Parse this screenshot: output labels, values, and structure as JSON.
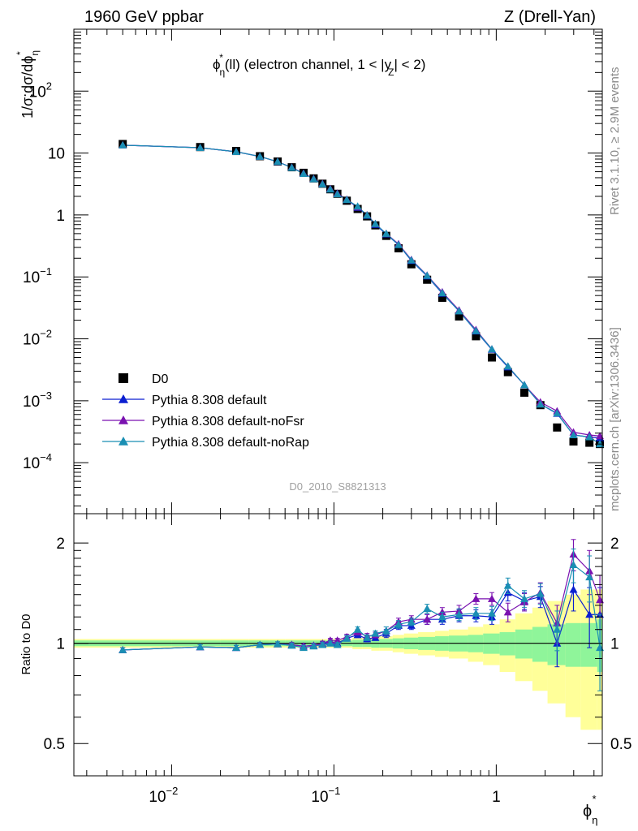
{
  "header": {
    "left": "1960 GeV ppbar",
    "right": "Z (Drell-Yan)",
    "side_rivet": "Rivet 3.1.10, ≥ 2.9M events",
    "side_mcplots": "mcplots.cern.ch [arXiv:1306.3436]",
    "analysis": "D0_2010_S8821313"
  },
  "chart_data": [
    {
      "type": "scatter",
      "title": "ϕη*(ll) (electron channel, 1 < |yZ| < 2)",
      "title_parts": {
        "phi": "ϕ",
        "sub": "η",
        "sup": "*",
        "mid": "(ll) (electron channel, 1 < |y",
        "ysub": "Z",
        "end": "| < 2)"
      },
      "ylabel": "1/σ;dσ/dϕη*",
      "ylabel_parts": {
        "main": "1/σ;dσ/dϕ",
        "sub": "η",
        "sup": "*"
      },
      "xscale": "log",
      "yscale": "log",
      "xlim": [
        0.0025,
        4.5
      ],
      "ylim": [
        1.5e-05,
        1000
      ],
      "legend_position": "lower-left",
      "x": [
        0.005,
        0.015,
        0.025,
        0.035,
        0.045,
        0.055,
        0.065,
        0.075,
        0.085,
        0.095,
        0.105,
        0.12,
        0.14,
        0.16,
        0.18,
        0.21,
        0.25,
        0.3,
        0.375,
        0.465,
        0.59,
        0.75,
        0.94,
        1.18,
        1.49,
        1.87,
        2.37,
        2.99,
        3.75,
        4.35
      ],
      "series": [
        {
          "name": "D0",
          "color": "#000000",
          "marker": "square",
          "values": [
            14.0,
            12.5,
            10.8,
            8.9,
            7.3,
            5.9,
            4.8,
            3.9,
            3.2,
            2.6,
            2.2,
            1.7,
            1.25,
            0.95,
            0.68,
            0.46,
            0.29,
            0.16,
            0.09,
            0.046,
            0.023,
            0.011,
            0.005,
            0.0029,
            0.00135,
            0.00085,
            0.00037,
            0.00022,
            0.00021,
            0.0002
          ]
        },
        {
          "name": "Pythia 8.308 default",
          "color": "#0b1fd0",
          "marker": "triangle",
          "values": [
            13.4,
            12.2,
            10.5,
            8.8,
            7.25,
            5.85,
            4.7,
            3.85,
            3.18,
            2.62,
            2.2,
            1.76,
            1.32,
            0.98,
            0.7,
            0.49,
            0.33,
            0.183,
            0.103,
            0.054,
            0.028,
            0.0133,
            0.0067,
            0.0035,
            0.0018,
            0.00088,
            0.00062,
            0.00028,
            0.00026,
            0.00025
          ]
        },
        {
          "name": "Pythia 8.308 default-noFsr",
          "color": "#7a12b0",
          "marker": "triangle",
          "values": [
            13.4,
            12.2,
            10.5,
            8.8,
            7.25,
            5.85,
            4.7,
            3.85,
            3.2,
            2.66,
            2.24,
            1.78,
            1.34,
            1.0,
            0.72,
            0.5,
            0.34,
            0.19,
            0.106,
            0.057,
            0.029,
            0.014,
            0.0068,
            0.0036,
            0.0018,
            0.00095,
            0.00068,
            0.00031,
            0.00028,
            0.00027
          ]
        },
        {
          "name": "Pythia 8.308 default-noRap",
          "color": "#1a8fb3",
          "marker": "triangle",
          "values": [
            13.4,
            12.2,
            10.5,
            8.8,
            7.25,
            5.8,
            4.65,
            3.8,
            3.15,
            2.6,
            2.18,
            1.76,
            1.38,
            0.99,
            0.72,
            0.5,
            0.33,
            0.186,
            0.105,
            0.055,
            0.028,
            0.0135,
            0.0068,
            0.0036,
            0.0018,
            0.00088,
            0.00063,
            0.00028,
            0.00026,
            0.0002
          ]
        }
      ]
    },
    {
      "type": "scatter",
      "xlabel": "ϕη*",
      "xlabel_parts": {
        "main": "ϕ",
        "sub": "η",
        "sup": "*"
      },
      "ylabel": "Ratio to D0",
      "xscale": "log",
      "yscale": "log",
      "xlim": [
        0.0025,
        4.5
      ],
      "ylim": [
        0.4,
        2.45
      ],
      "reference_line": 1,
      "x_edges": [
        0.0025,
        0.01,
        0.02,
        0.03,
        0.04,
        0.05,
        0.06,
        0.07,
        0.08,
        0.09,
        0.1,
        0.11,
        0.13,
        0.15,
        0.17,
        0.19,
        0.23,
        0.27,
        0.33,
        0.42,
        0.51,
        0.67,
        0.83,
        1.05,
        1.31,
        1.67,
        2.07,
        2.67,
        3.31,
        4.19,
        4.5
      ],
      "band_green_halfwidth": [
        0.02,
        0.02,
        0.02,
        0.02,
        0.02,
        0.02,
        0.02,
        0.02,
        0.02,
        0.02,
        0.02,
        0.02,
        0.025,
        0.025,
        0.03,
        0.03,
        0.035,
        0.04,
        0.045,
        0.05,
        0.055,
        0.06,
        0.07,
        0.08,
        0.1,
        0.12,
        0.14,
        0.15,
        0.15,
        0.18
      ],
      "band_yellow_halfwidth": [
        0.03,
        0.03,
        0.03,
        0.03,
        0.03,
        0.03,
        0.03,
        0.03,
        0.03,
        0.03,
        0.03,
        0.03,
        0.04,
        0.04,
        0.05,
        0.05,
        0.06,
        0.07,
        0.08,
        0.09,
        0.1,
        0.12,
        0.14,
        0.18,
        0.23,
        0.28,
        0.34,
        0.4,
        0.45,
        0.45
      ],
      "ratio_series": [
        {
          "name": "Pythia 8.308 default",
          "color": "#0b1fd0",
          "values": [
            0.955,
            0.975,
            0.97,
            0.99,
            0.995,
            0.99,
            0.98,
            0.985,
            0.995,
            1.01,
            1.0,
            1.035,
            1.06,
            1.03,
            1.04,
            1.07,
            1.13,
            1.13,
            1.18,
            1.18,
            1.21,
            1.21,
            1.2,
            1.42,
            1.34,
            1.38,
            1.0,
            1.45,
            1.22,
            1.22
          ],
          "err": [
            0.015,
            0.015,
            0.015,
            0.015,
            0.015,
            0.015,
            0.015,
            0.015,
            0.015,
            0.015,
            0.015,
            0.02,
            0.02,
            0.02,
            0.02,
            0.03,
            0.03,
            0.03,
            0.04,
            0.04,
            0.05,
            0.05,
            0.06,
            0.08,
            0.08,
            0.1,
            0.15,
            0.2,
            0.25,
            0.25
          ]
        },
        {
          "name": "Pythia 8.308 default-noFsr",
          "color": "#7a12b0",
          "values": [
            0.955,
            0.975,
            0.97,
            0.99,
            0.995,
            0.99,
            0.98,
            0.985,
            1.0,
            1.02,
            1.02,
            1.045,
            1.08,
            1.05,
            1.06,
            1.09,
            1.16,
            1.18,
            1.18,
            1.24,
            1.25,
            1.36,
            1.36,
            1.24,
            1.33,
            1.42,
            1.15,
            1.85,
            1.65,
            1.35
          ],
          "err": [
            0.015,
            0.015,
            0.015,
            0.015,
            0.015,
            0.015,
            0.015,
            0.015,
            0.015,
            0.015,
            0.015,
            0.02,
            0.02,
            0.02,
            0.02,
            0.03,
            0.03,
            0.03,
            0.04,
            0.04,
            0.05,
            0.05,
            0.06,
            0.08,
            0.08,
            0.1,
            0.15,
            0.2,
            0.25,
            0.25
          ]
        },
        {
          "name": "Pythia 8.308 default-noRap",
          "color": "#1a8fb3",
          "values": [
            0.955,
            0.975,
            0.97,
            0.99,
            0.995,
            0.985,
            0.97,
            0.98,
            0.99,
            1.0,
            0.99,
            1.035,
            1.1,
            1.04,
            1.07,
            1.09,
            1.14,
            1.16,
            1.27,
            1.2,
            1.22,
            1.23,
            1.23,
            1.49,
            1.36,
            1.41,
            1.1,
            1.72,
            1.58,
            0.97
          ],
          "err": [
            0.015,
            0.015,
            0.015,
            0.015,
            0.015,
            0.015,
            0.015,
            0.015,
            0.015,
            0.015,
            0.015,
            0.02,
            0.02,
            0.02,
            0.02,
            0.03,
            0.03,
            0.03,
            0.04,
            0.04,
            0.05,
            0.05,
            0.06,
            0.08,
            0.08,
            0.1,
            0.15,
            0.2,
            0.25,
            0.25
          ]
        }
      ]
    }
  ]
}
